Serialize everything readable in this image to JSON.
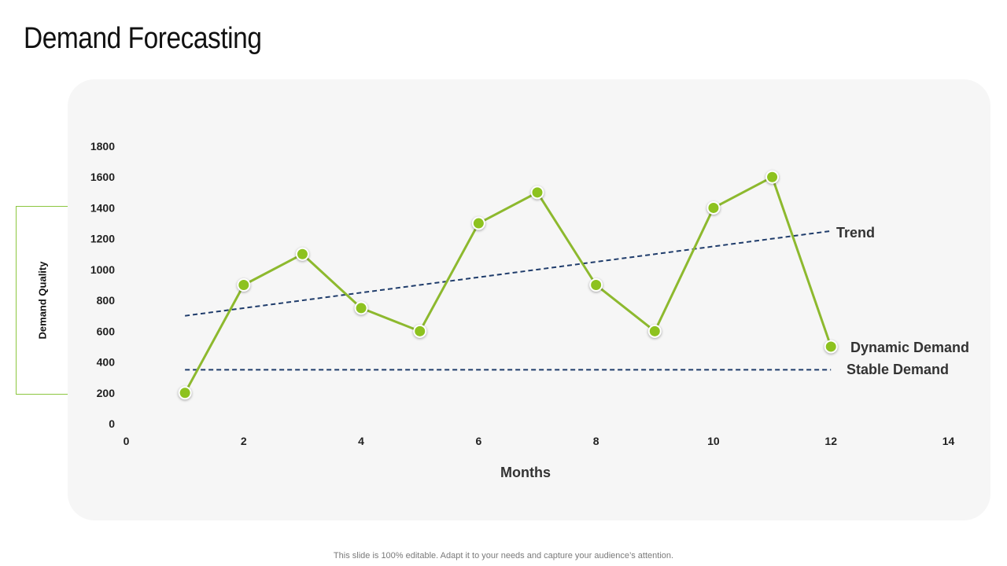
{
  "slide": {
    "title": "Demand Forecasting",
    "footer": "This slide is 100% editable. Adapt it to your needs and capture your audience’s attention."
  },
  "colors": {
    "series_line": "#8db92e",
    "series_marker": "#8dc21f",
    "dashed_lines": "#1f3c6b",
    "ylabel_border": "#8cc63f",
    "panel_background": "#f6f6f6"
  },
  "chart_data": {
    "type": "line",
    "title": "",
    "xlabel": "Months",
    "ylabel": "Demand Quality",
    "xlim": [
      0,
      14
    ],
    "ylim": [
      0,
      1800
    ],
    "x_ticks": [
      0,
      2,
      4,
      6,
      8,
      10,
      12,
      14
    ],
    "y_ticks": [
      0,
      200,
      400,
      600,
      800,
      1000,
      1200,
      1400,
      1600,
      1800
    ],
    "grid": false,
    "series": [
      {
        "name": "Dynamic Demand",
        "style": "solid-with-markers",
        "x": [
          1,
          2,
          3,
          4,
          5,
          6,
          7,
          8,
          9,
          10,
          11,
          12
        ],
        "y": [
          200,
          900,
          1100,
          750,
          600,
          1300,
          1500,
          900,
          600,
          1400,
          1600,
          500
        ]
      },
      {
        "name": "Trend",
        "style": "dashed",
        "x": [
          1,
          12
        ],
        "y": [
          700,
          1250
        ]
      },
      {
        "name": "Stable Demand",
        "style": "dashed",
        "x": [
          1,
          12
        ],
        "y": [
          350,
          350
        ]
      }
    ]
  }
}
